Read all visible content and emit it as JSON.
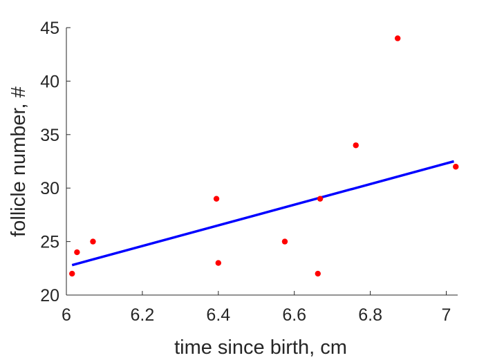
{
  "chart_data": {
    "type": "scatter",
    "xlabel": "time since birth, cm",
    "ylabel": "follicle number, #",
    "xlim": [
      6,
      7.03
    ],
    "ylim": [
      20,
      45
    ],
    "xticks": [
      6,
      6.2,
      6.4,
      6.6,
      6.8,
      7
    ],
    "xtick_labels": [
      "6",
      "6.2",
      "6.4",
      "6.6",
      "6.8",
      "7"
    ],
    "yticks": [
      20,
      25,
      30,
      35,
      40,
      45
    ],
    "ytick_labels": [
      "20",
      "25",
      "30",
      "35",
      "40",
      "45"
    ],
    "grid": false,
    "box": "left-bottom",
    "series": [
      {
        "kind": "points",
        "color": "#ff0000",
        "x": [
          6.015,
          6.028,
          6.07,
          6.395,
          6.4,
          6.575,
          6.662,
          6.668,
          6.762,
          6.872,
          7.025
        ],
        "y": [
          22,
          24,
          25,
          29,
          23,
          25,
          22,
          29,
          34,
          44,
          32
        ]
      },
      {
        "kind": "fit-line",
        "color": "#0000ff",
        "x": [
          6.015,
          7.02
        ],
        "y": [
          22.8,
          32.5
        ]
      }
    ]
  }
}
